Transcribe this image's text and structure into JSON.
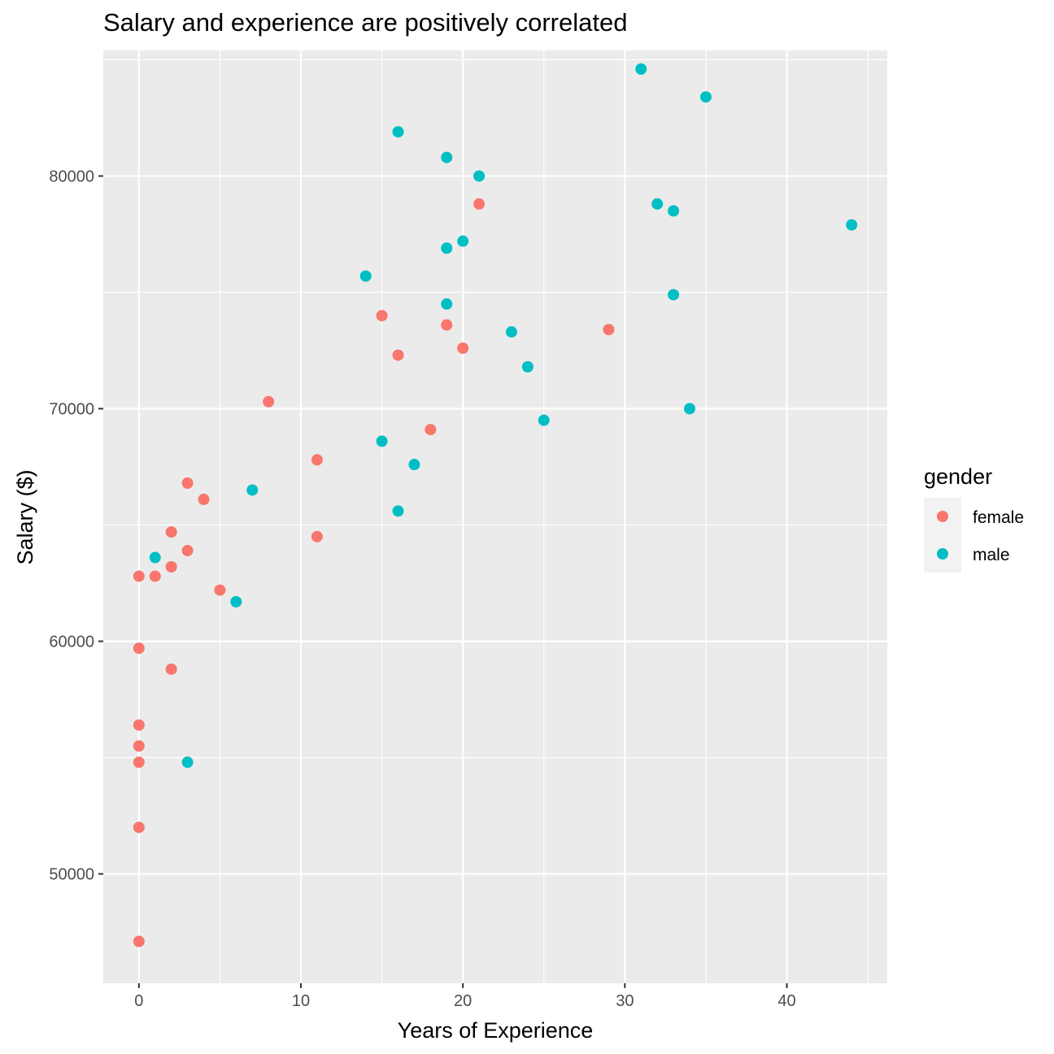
{
  "chart_data": {
    "type": "scatter",
    "title": "Salary and experience are positively correlated",
    "xlabel": "Years of Experience",
    "ylabel": "Salary ($)",
    "xlim": [
      -2.2,
      46.2
    ],
    "ylim": [
      45300,
      85400
    ],
    "x_ticks": [
      0,
      10,
      20,
      30,
      40
    ],
    "y_ticks": [
      50000,
      60000,
      70000,
      80000
    ],
    "x_tick_labels": [
      "0",
      "10",
      "20",
      "30",
      "40"
    ],
    "y_tick_labels": [
      "50000",
      "60000",
      "70000",
      "80000"
    ],
    "grid": true,
    "legend": {
      "title": "gender",
      "position": "right"
    },
    "series": [
      {
        "name": "female",
        "color": "#F8766D",
        "points": [
          [
            0,
            47100
          ],
          [
            0,
            52000
          ],
          [
            0,
            54800
          ],
          [
            0,
            55500
          ],
          [
            0,
            56400
          ],
          [
            0,
            59700
          ],
          [
            0,
            62800
          ],
          [
            1,
            62800
          ],
          [
            2,
            58800
          ],
          [
            2,
            63200
          ],
          [
            2,
            64700
          ],
          [
            3,
            63900
          ],
          [
            3,
            66800
          ],
          [
            4,
            66100
          ],
          [
            5,
            62200
          ],
          [
            8,
            70300
          ],
          [
            11,
            64500
          ],
          [
            11,
            67800
          ],
          [
            15,
            74000
          ],
          [
            16,
            72300
          ],
          [
            18,
            69100
          ],
          [
            19,
            73600
          ],
          [
            20,
            72600
          ],
          [
            21,
            78800
          ],
          [
            29,
            73400
          ]
        ]
      },
      {
        "name": "male",
        "color": "#00BFC4",
        "points": [
          [
            1,
            63600
          ],
          [
            3,
            54800
          ],
          [
            6,
            61700
          ],
          [
            7,
            66500
          ],
          [
            14,
            75700
          ],
          [
            15,
            68600
          ],
          [
            16,
            65600
          ],
          [
            16,
            81900
          ],
          [
            17,
            67600
          ],
          [
            19,
            74500
          ],
          [
            19,
            76900
          ],
          [
            19,
            80800
          ],
          [
            20,
            77200
          ],
          [
            21,
            80000
          ],
          [
            23,
            73300
          ],
          [
            24,
            71800
          ],
          [
            25,
            69500
          ],
          [
            31,
            84600
          ],
          [
            32,
            78800
          ],
          [
            33,
            78500
          ],
          [
            33,
            74900
          ],
          [
            34,
            70000
          ],
          [
            35,
            83400
          ],
          [
            44,
            77900
          ]
        ]
      }
    ]
  }
}
